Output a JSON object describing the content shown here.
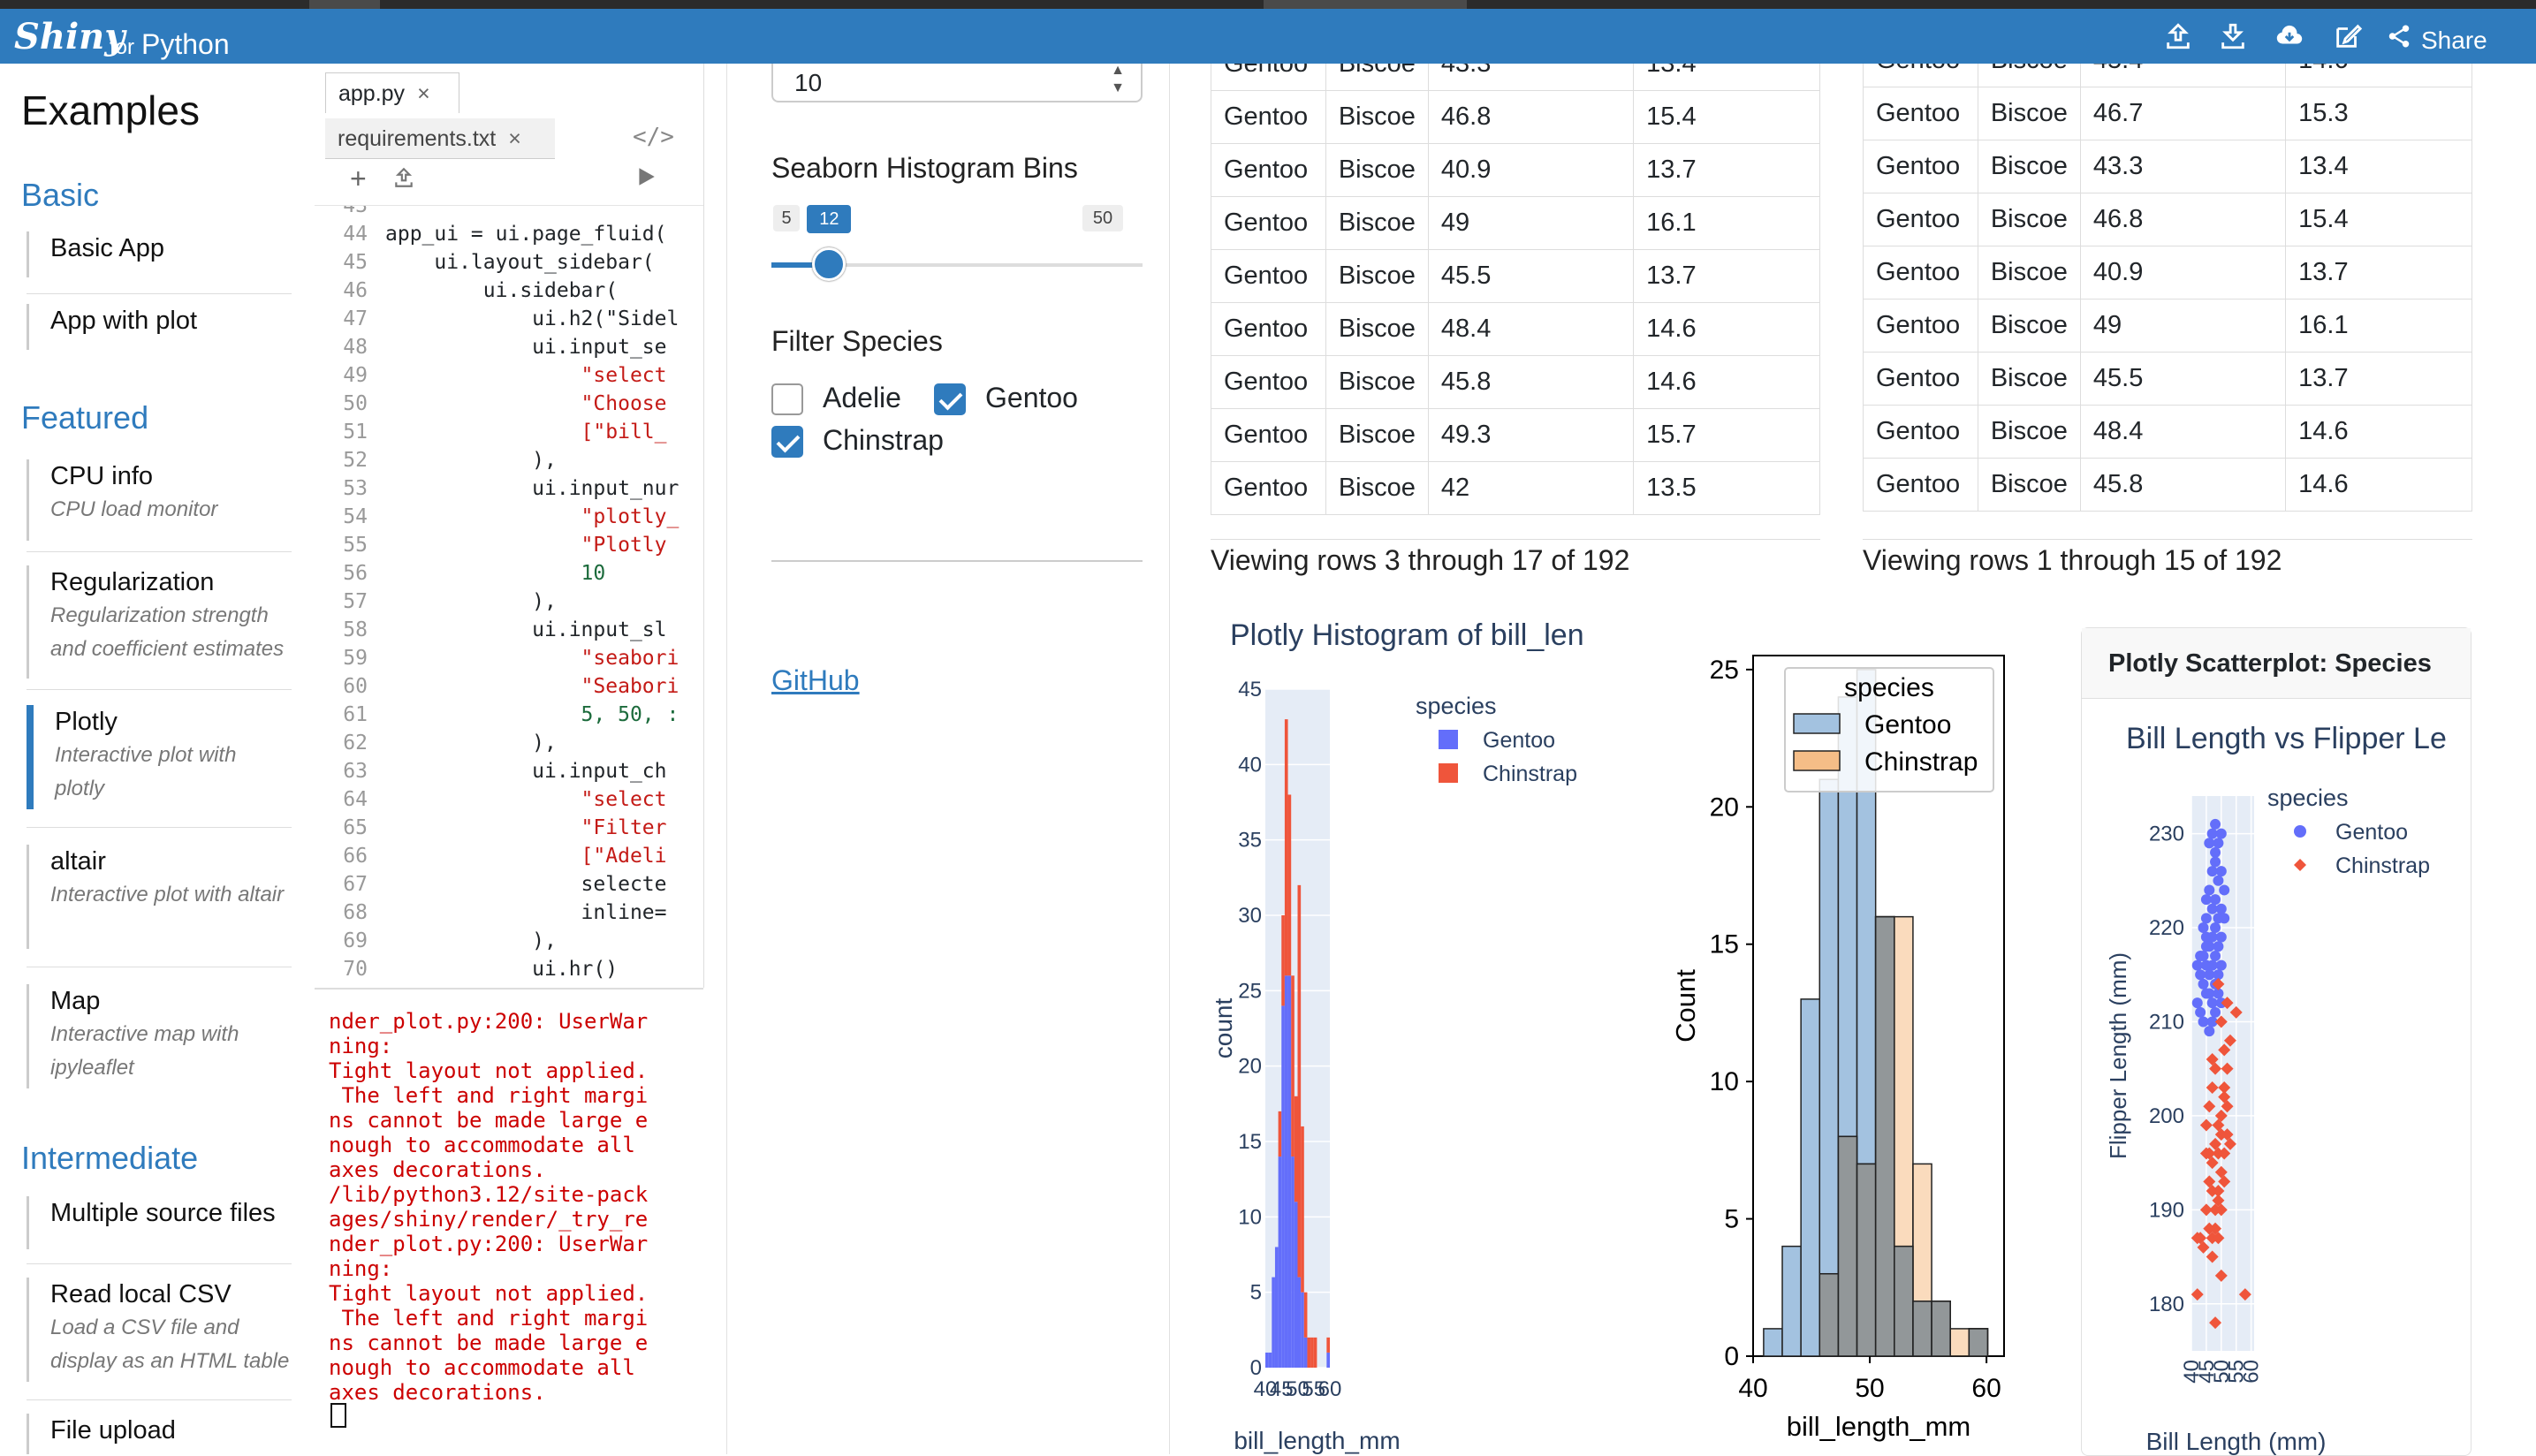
{
  "navbar": {
    "brand": "Shiny",
    "brand_for": "for",
    "brand_lang": "Python",
    "share": "Share",
    "icons": [
      "upload-icon",
      "download-icon",
      "cloud-download-icon",
      "edit-icon",
      "share-icon"
    ]
  },
  "examples": {
    "title": "Examples",
    "sections": {
      "basic": "Basic",
      "featured": "Featured",
      "intermediate": "Intermediate"
    },
    "items": [
      {
        "title": "Basic App",
        "desc": ""
      },
      {
        "title": "App with plot",
        "desc": ""
      },
      {
        "title": "CPU info",
        "desc": "CPU load monitor"
      },
      {
        "title": "Regularization",
        "desc": "Regularization strength and coefficient estimates"
      },
      {
        "title": "Plotly",
        "desc": "Interactive plot with plotly"
      },
      {
        "title": "altair",
        "desc": "Interactive plot with altair"
      },
      {
        "title": "Map",
        "desc": "Interactive map with ipyleaflet"
      },
      {
        "title": "Multiple source files",
        "desc": ""
      },
      {
        "title": "Read local CSV",
        "desc": "Load a CSV file and display as an HTML table"
      },
      {
        "title": "File upload",
        "desc": ""
      }
    ]
  },
  "editor": {
    "tabs": [
      "app.py",
      "requirements.txt"
    ],
    "close": "×",
    "add": "+",
    "lines": [
      {
        "n": "43",
        "t": ""
      },
      {
        "n": "44",
        "t": "app_ui = ui.page_fluid("
      },
      {
        "n": "45",
        "t": "    ui.layout_sidebar("
      },
      {
        "n": "46",
        "t": "        ui.sidebar("
      },
      {
        "n": "47",
        "t": "            ui.h2(\"Sidel"
      },
      {
        "n": "48",
        "t": "            ui.input_se"
      },
      {
        "n": "49",
        "t": "                \"select"
      },
      {
        "n": "50",
        "t": "                \"Choose"
      },
      {
        "n": "51",
        "t": "                [\"bill_"
      },
      {
        "n": "52",
        "t": "            ),"
      },
      {
        "n": "53",
        "t": "            ui.input_nur"
      },
      {
        "n": "54",
        "t": "                \"plotly_"
      },
      {
        "n": "55",
        "t": "                \"Plotly"
      },
      {
        "n": "56",
        "t": "                10"
      },
      {
        "n": "57",
        "t": "            ),"
      },
      {
        "n": "58",
        "t": "            ui.input_sl"
      },
      {
        "n": "59",
        "t": "                \"seabori"
      },
      {
        "n": "60",
        "t": "                \"Seabori"
      },
      {
        "n": "61",
        "t": "                5, 50, :"
      },
      {
        "n": "62",
        "t": "            ),"
      },
      {
        "n": "63",
        "t": "            ui.input_ch"
      },
      {
        "n": "64",
        "t": "                \"select"
      },
      {
        "n": "65",
        "t": "                \"Filter"
      },
      {
        "n": "66",
        "t": "                [\"Adeli"
      },
      {
        "n": "67",
        "t": "                selecte"
      },
      {
        "n": "68",
        "t": "                inline="
      },
      {
        "n": "69",
        "t": "            ),"
      },
      {
        "n": "70",
        "t": "            ui.hr()"
      }
    ],
    "console": "nder_plot.py:200: UserWar\nning:\nTight layout not applied.\n The left and right margi\nns cannot be made large e\nnough to accommodate all\naxes decorations.\n/lib/python3.12/site-pack\nages/shiny/render/_try_re\nnder_plot.py:200: UserWar\nning:\nTight layout not applied.\n The left and right margi\nns cannot be made large e\nnough to accommodate all\naxes decorations."
  },
  "app_sidebar": {
    "plotly_bins_value": "10",
    "seaborn_label": "Seaborn Histogram Bins",
    "slider": {
      "min": "5",
      "max": "50",
      "value": "12",
      "min_num": 5,
      "max_num": 50,
      "value_num": 12
    },
    "filter_label": "Filter Species",
    "checkboxes": [
      {
        "label": "Adelie",
        "checked": false
      },
      {
        "label": "Gentoo",
        "checked": true
      },
      {
        "label": "Chinstrap",
        "checked": true
      }
    ],
    "github": "GitHub"
  },
  "table1": {
    "rows": [
      [
        "Gentoo",
        "Biscoe",
        "43.3",
        "13.4"
      ],
      [
        "Gentoo",
        "Biscoe",
        "46.8",
        "15.4"
      ],
      [
        "Gentoo",
        "Biscoe",
        "40.9",
        "13.7"
      ],
      [
        "Gentoo",
        "Biscoe",
        "49",
        "16.1"
      ],
      [
        "Gentoo",
        "Biscoe",
        "45.5",
        "13.7"
      ],
      [
        "Gentoo",
        "Biscoe",
        "48.4",
        "14.6"
      ],
      [
        "Gentoo",
        "Biscoe",
        "45.8",
        "14.6"
      ],
      [
        "Gentoo",
        "Biscoe",
        "49.3",
        "15.7"
      ],
      [
        "Gentoo",
        "Biscoe",
        "42",
        "13.5"
      ]
    ],
    "caption": "Viewing rows 3 through 17 of 192"
  },
  "table2": {
    "rows": [
      [
        "Gentoo",
        "Biscoe",
        "45.4",
        "14.6"
      ],
      [
        "Gentoo",
        "Biscoe",
        "46.7",
        "15.3"
      ],
      [
        "Gentoo",
        "Biscoe",
        "43.3",
        "13.4"
      ],
      [
        "Gentoo",
        "Biscoe",
        "46.8",
        "15.4"
      ],
      [
        "Gentoo",
        "Biscoe",
        "40.9",
        "13.7"
      ],
      [
        "Gentoo",
        "Biscoe",
        "49",
        "16.1"
      ],
      [
        "Gentoo",
        "Biscoe",
        "45.5",
        "13.7"
      ],
      [
        "Gentoo",
        "Biscoe",
        "48.4",
        "14.6"
      ],
      [
        "Gentoo",
        "Biscoe",
        "45.8",
        "14.6"
      ]
    ],
    "caption": "Viewing rows 1 through 15 of 192"
  },
  "chart_data": [
    {
      "type": "bar",
      "title": "Plotly Histogram of bill_len",
      "xlabel": "bill_length_mm",
      "ylabel": "count",
      "x_ticks": [
        "40",
        "45",
        "50",
        "55",
        "60"
      ],
      "y_ticks": [
        "0",
        "5",
        "10",
        "15",
        "20",
        "25",
        "30",
        "35",
        "40",
        "45"
      ],
      "xlim": [
        40,
        60
      ],
      "ylim": [
        0,
        45
      ],
      "legend_title": "species",
      "legend_position": "top-right",
      "bin_width": 1,
      "series": [
        {
          "name": "Gentoo",
          "color": "#636efa",
          "bins": [
            [
              40,
              1
            ],
            [
              41,
              1
            ],
            [
              42,
              6
            ],
            [
              43,
              8
            ],
            [
              44,
              14
            ],
            [
              45,
              24
            ],
            [
              46,
              26
            ],
            [
              47,
              26
            ],
            [
              48,
              14
            ],
            [
              49,
              11
            ],
            [
              50,
              6
            ],
            [
              51,
              5
            ],
            [
              52,
              2
            ],
            [
              53,
              0
            ],
            [
              54,
              0
            ],
            [
              55,
              0
            ],
            [
              59,
              1
            ]
          ]
        },
        {
          "name": "Chinstrap",
          "color": "#ef553b",
          "bins": [
            [
              40,
              0
            ],
            [
              41,
              0
            ],
            [
              42,
              0
            ],
            [
              43,
              0
            ],
            [
              44,
              3
            ],
            [
              45,
              6
            ],
            [
              46,
              17
            ],
            [
              47,
              12
            ],
            [
              48,
              12
            ],
            [
              49,
              7
            ],
            [
              50,
              26
            ],
            [
              51,
              11
            ],
            [
              52,
              3
            ],
            [
              53,
              2
            ],
            [
              54,
              2
            ],
            [
              55,
              2
            ],
            [
              59,
              1
            ]
          ]
        }
      ]
    },
    {
      "type": "bar",
      "title": "",
      "xlabel": "bill_length_mm",
      "ylabel": "Count",
      "x_ticks": [
        "40",
        "50",
        "60"
      ],
      "y_ticks": [
        "0",
        "5",
        "10",
        "15",
        "20",
        "25"
      ],
      "xlim": [
        40,
        60
      ],
      "ylim": [
        0,
        25
      ],
      "legend_title": "species",
      "legend_position": "top-left",
      "bin_edges": [
        40.9,
        42.5,
        44.1,
        45.7,
        47.3,
        48.9,
        50.5,
        52.1,
        53.7,
        55.3,
        56.9,
        58.5,
        60.1
      ],
      "series": [
        {
          "name": "Gentoo",
          "color": "#a3c2e0",
          "values": [
            1,
            4,
            13,
            21,
            24,
            25,
            16,
            4,
            2,
            2,
            0,
            1
          ]
        },
        {
          "name": "Chinstrap",
          "color": "#f5bd87",
          "values": [
            0,
            0,
            0,
            3,
            8,
            7,
            16,
            16,
            7,
            2,
            1,
            1
          ]
        }
      ]
    },
    {
      "type": "scatter",
      "card_title": "Plotly Scatterplot: Species",
      "title": "Bill Length vs Flipper Le",
      "xlabel": "Bill Length (mm)",
      "ylabel": "Flipper Length (mm)",
      "x_ticks": [
        "40",
        "45",
        "50",
        "55",
        "60"
      ],
      "y_ticks": [
        "180",
        "190",
        "200",
        "210",
        "220",
        "230"
      ],
      "xlim": [
        40,
        61
      ],
      "ylim": [
        175,
        234
      ],
      "legend_title": "species",
      "legend_position": "top-right",
      "series": [
        {
          "name": "Gentoo",
          "color": "#636efa",
          "marker": "circle",
          "points": [
            [
              46,
              229
            ],
            [
              47,
              230
            ],
            [
              48,
              231
            ],
            [
              49,
              229
            ],
            [
              48,
              228
            ],
            [
              50,
              230
            ],
            [
              47,
              226
            ],
            [
              48,
              227
            ],
            [
              49,
              225
            ],
            [
              50,
              226
            ],
            [
              45,
              223
            ],
            [
              46,
              224
            ],
            [
              47,
              222
            ],
            [
              48,
              223
            ],
            [
              49,
              221
            ],
            [
              50,
              222
            ],
            [
              51,
              224
            ],
            [
              44,
              220
            ],
            [
              45,
              219
            ],
            [
              46,
              218
            ],
            [
              47,
              219
            ],
            [
              48,
              217
            ],
            [
              49,
              218
            ],
            [
              50,
              216
            ],
            [
              43,
              215
            ],
            [
              44,
              214
            ],
            [
              45,
              216
            ],
            [
              46,
              213
            ],
            [
              47,
              212
            ],
            [
              48,
              214
            ],
            [
              49,
              213
            ],
            [
              42,
              212
            ],
            [
              43,
              211
            ],
            [
              44,
              210
            ],
            [
              45,
              213
            ],
            [
              46,
              215
            ],
            [
              47,
              216
            ],
            [
              48,
              220
            ],
            [
              50,
              219
            ],
            [
              51,
              221
            ],
            [
              43,
              217
            ],
            [
              45,
              221
            ],
            [
              49,
              215
            ],
            [
              50,
              212
            ],
            [
              46,
              209
            ],
            [
              47,
              210
            ],
            [
              48,
              211
            ],
            [
              44,
              217
            ],
            [
              45,
              218
            ],
            [
              42,
              216
            ]
          ]
        },
        {
          "name": "Chinstrap",
          "color": "#ef553b",
          "marker": "diamond",
          "points": [
            [
              46,
              201
            ],
            [
              47,
              203
            ],
            [
              49,
              199
            ],
            [
              50,
              200
            ],
            [
              51,
              202
            ],
            [
              52,
              201
            ],
            [
              45,
              196
            ],
            [
              47,
              195
            ],
            [
              48,
              197
            ],
            [
              49,
              196
            ],
            [
              50,
              198
            ],
            [
              51,
              196
            ],
            [
              46,
              193
            ],
            [
              47,
              192
            ],
            [
              48,
              190
            ],
            [
              49,
              192
            ],
            [
              50,
              194
            ],
            [
              51,
              193
            ],
            [
              45,
              190
            ],
            [
              46,
              188
            ],
            [
              47,
              187
            ],
            [
              48,
              188
            ],
            [
              49,
              191
            ],
            [
              50,
              190
            ],
            [
              43,
              187
            ],
            [
              42,
              187
            ],
            [
              44,
              186
            ],
            [
              47,
              185
            ],
            [
              49,
              187
            ],
            [
              52,
              205
            ],
            [
              53,
              208
            ],
            [
              51,
              207
            ],
            [
              50,
              210
            ],
            [
              55,
              211
            ],
            [
              52,
              212
            ],
            [
              49,
              214
            ],
            [
              46,
              196
            ],
            [
              45,
              199
            ],
            [
              58,
              181
            ],
            [
              42,
              181
            ],
            [
              48,
              178
            ],
            [
              50,
              183
            ],
            [
              48,
              205
            ],
            [
              47,
              206
            ],
            [
              51,
              203
            ],
            [
              53,
              197
            ],
            [
              52,
              198
            ]
          ]
        }
      ]
    }
  ]
}
